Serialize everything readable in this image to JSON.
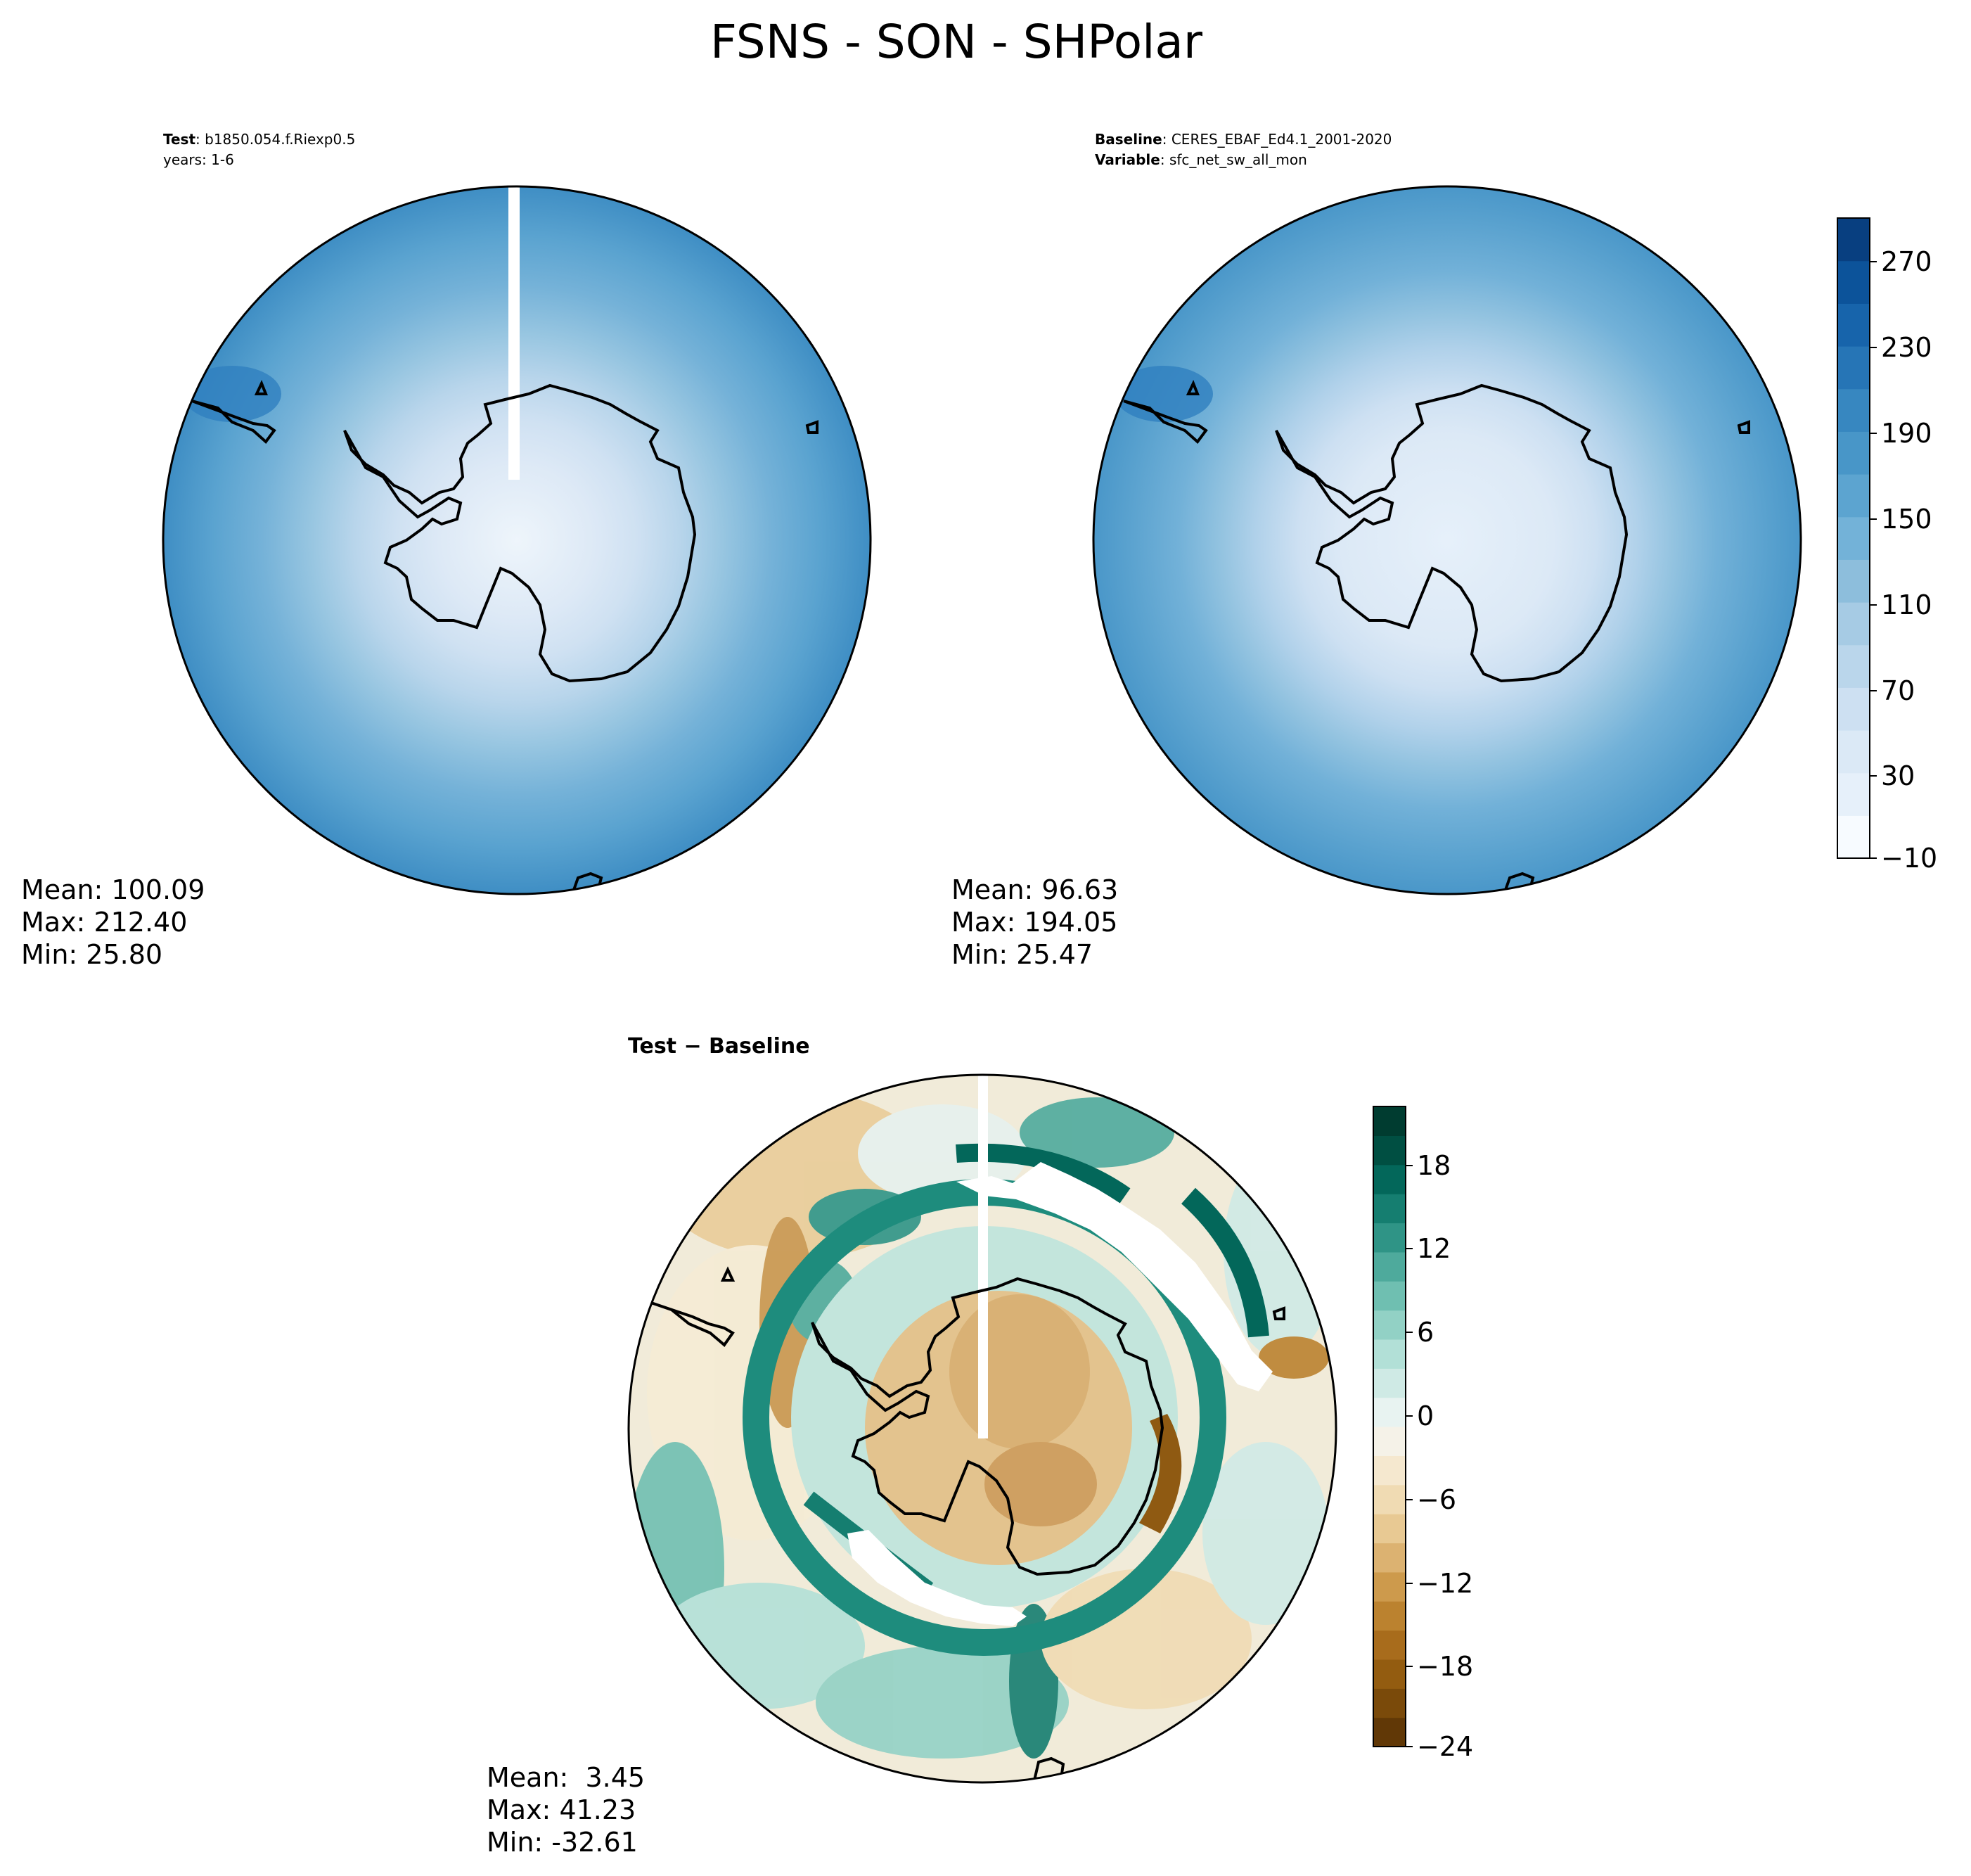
{
  "figure": {
    "title": "FSNS - SON - SHPolar"
  },
  "panels": {
    "test": {
      "label_bold": "Test",
      "label_value": "b1850.054.f.Riexp0.5",
      "years": "years: 1-6",
      "stats": [
        "Mean: 100.09",
        "Max: 212.40",
        "Min: 25.80"
      ]
    },
    "baseline": {
      "label_bold": "Baseline",
      "label_value": "CERES_EBAF_Ed4.1_2001-2020",
      "variable_bold": "Variable",
      "variable_value": "sfc_net_sw_all_mon",
      "stats": [
        "Mean: 96.63",
        "Max: 194.05",
        "Min: 25.47"
      ]
    },
    "diff": {
      "label": "Test − Baseline",
      "stats": [
        "Mean:  3.45",
        "Max: 41.23",
        "Min: -32.61"
      ]
    }
  },
  "colorbars": {
    "main": {
      "ticks": [
        "270",
        "230",
        "190",
        "150",
        "110",
        "70",
        "30",
        "−10"
      ],
      "range": [
        -10,
        290
      ],
      "colors": [
        "#f7fbff",
        "#e6f0fa",
        "#dbe9f6",
        "#cde0f2",
        "#bad6eb",
        "#a6cbe4",
        "#8dbedc",
        "#73b2d8",
        "#5ca4d0",
        "#4896c8",
        "#3787c0",
        "#2675b6",
        "#1764ab",
        "#0c539a",
        "#083f80"
      ]
    },
    "diff": {
      "ticks": [
        "18",
        "12",
        "6",
        "0",
        "−6",
        "−12",
        "−18",
        "−24"
      ],
      "range": [
        -24,
        22
      ],
      "colors": [
        "#613806",
        "#7a4a0a",
        "#935c10",
        "#a86c1c",
        "#bb822f",
        "#cd9a4c",
        "#dcb271",
        "#e8c993",
        "#f0dbb3",
        "#f5e8cf",
        "#f5f2e8",
        "#e8f3f1",
        "#cfeae5",
        "#b2e0d7",
        "#92d1c5",
        "#6fbfb1",
        "#4eaa9c",
        "#2f9486",
        "#157e70",
        "#03675a",
        "#004f42",
        "#003c30"
      ]
    }
  }
}
